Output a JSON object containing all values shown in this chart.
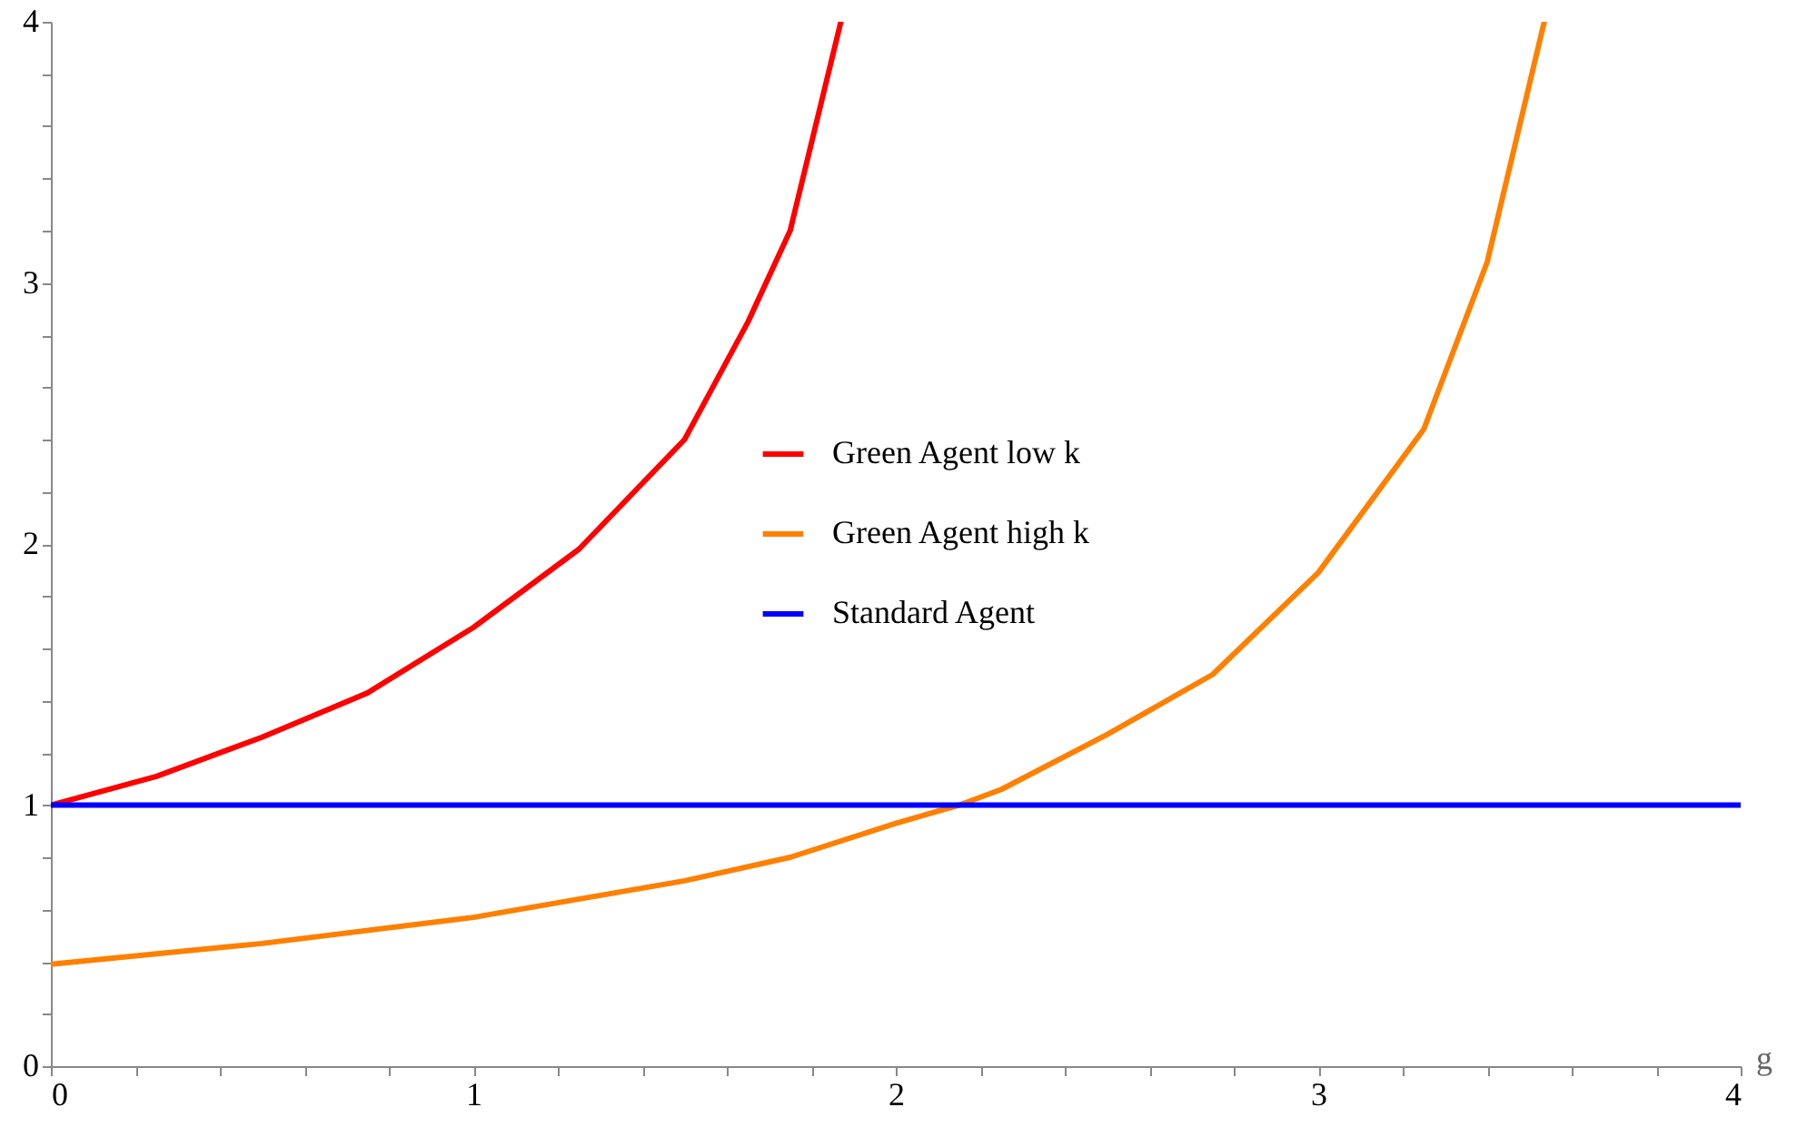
{
  "chart_data": {
    "type": "line",
    "xlabel": "g",
    "xlim": [
      0,
      4
    ],
    "ylim": [
      0,
      4
    ],
    "xticks": [
      0,
      {
        "value": 0.2,
        "label": null
      },
      {
        "value": 0.4,
        "label": null
      },
      {
        "value": 0.6,
        "label": null
      },
      {
        "value": 0.8,
        "label": null
      },
      1,
      {
        "value": 1.2,
        "label": null
      },
      {
        "value": 1.4,
        "label": null
      },
      {
        "value": 1.6,
        "label": null
      },
      {
        "value": 1.8,
        "label": null
      },
      2,
      {
        "value": 2.2,
        "label": null
      },
      {
        "value": 2.4,
        "label": null
      },
      {
        "value": 2.6,
        "label": null
      },
      {
        "value": 2.8,
        "label": null
      },
      3,
      {
        "value": 3.2,
        "label": null
      },
      {
        "value": 3.4,
        "label": null
      },
      {
        "value": 3.6,
        "label": null
      },
      {
        "value": 3.8,
        "label": null
      },
      4
    ],
    "yticks": [
      0,
      {
        "value": 0.2,
        "label": null
      },
      {
        "value": 0.4,
        "label": null
      },
      {
        "value": 0.6,
        "label": null
      },
      {
        "value": 0.8,
        "label": null
      },
      1,
      {
        "value": 1.2,
        "label": null
      },
      {
        "value": 1.4,
        "label": null
      },
      {
        "value": 1.6,
        "label": null
      },
      {
        "value": 1.8,
        "label": null
      },
      2,
      {
        "value": 2.2,
        "label": null
      },
      {
        "value": 2.4,
        "label": null
      },
      {
        "value": 2.6,
        "label": null
      },
      {
        "value": 2.8,
        "label": null
      },
      3,
      {
        "value": 3.2,
        "label": null
      },
      {
        "value": 3.4,
        "label": null
      },
      {
        "value": 3.6,
        "label": null
      },
      {
        "value": 3.8,
        "label": null
      },
      4
    ],
    "legend": "center",
    "grid": false,
    "marker": "none",
    "line_style": "solid",
    "series": [
      {
        "name": "Green Agent low k",
        "color": "#ff0000",
        "x": [
          0,
          0.25,
          0.5,
          0.75,
          1,
          1.25,
          1.5,
          1.65,
          1.75,
          1.87
        ],
        "values": [
          1,
          1.11,
          1.26,
          1.43,
          1.68,
          1.98,
          2.4,
          2.85,
          3.2,
          4
        ]
      },
      {
        "name": "Green Agent high k",
        "color": "#ff8000",
        "x": [
          0,
          0.5,
          1,
          1.5,
          1.75,
          2,
          2.15,
          2.25,
          2.5,
          2.75,
          3,
          3.25,
          3.4,
          3.535
        ],
        "values": [
          0.39,
          0.47,
          0.57,
          0.71,
          0.8,
          0.93,
          1,
          1.06,
          1.27,
          1.5,
          1.89,
          2.44,
          3.08,
          4
        ]
      },
      {
        "name": "Standard Agent",
        "color": "#0000ff",
        "x": [
          0,
          4
        ],
        "values": [
          1,
          1
        ]
      }
    ]
  }
}
